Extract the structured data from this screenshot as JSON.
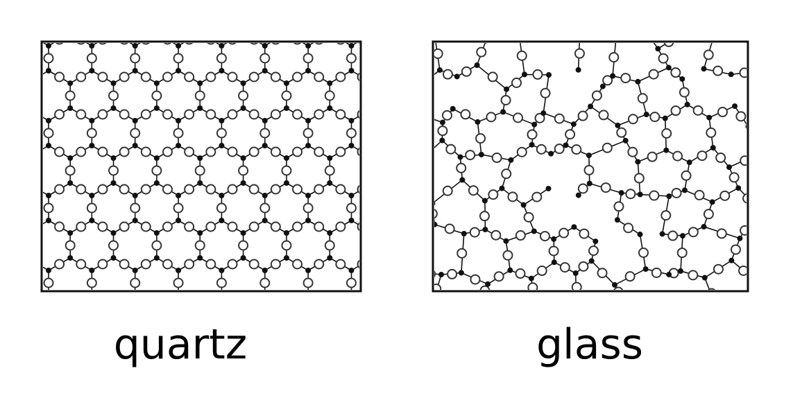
{
  "panels": [
    {
      "id": "quartz",
      "label": "quartz"
    },
    {
      "id": "glass",
      "label": "glass"
    }
  ],
  "colors": {
    "ink": "#111111",
    "oxygen_stroke": "#333333",
    "silicon_fill": "#111111",
    "background": "#ffffff"
  }
}
